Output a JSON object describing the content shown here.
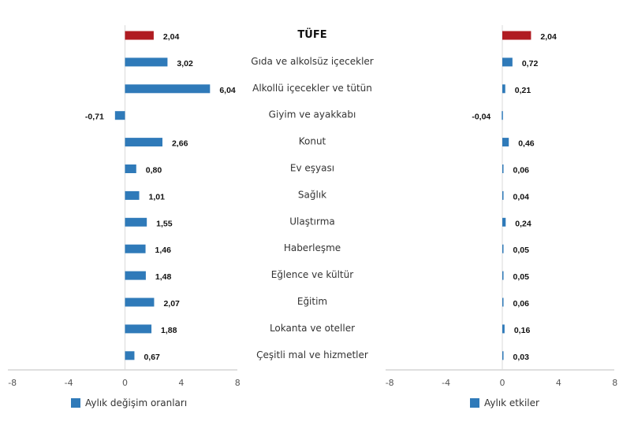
{
  "colors": {
    "tufe": "#b01c22",
    "item": "#2f7ab9",
    "axis": "#bfbfbf"
  },
  "legend": {
    "left_label": "Aylık değişim oranları",
    "right_label": "Aylık etkiler"
  },
  "chart_data": [
    {
      "type": "bar",
      "orientation": "horizontal",
      "categories": [
        "TÜFE",
        "Gıda ve alkolsüz içecekler",
        "Alkollü içecekler ve tütün",
        "Giyim ve ayakkabı",
        "Konut",
        "Ev eşyası",
        "Sağlık",
        "Ulaştırma",
        "Haberleşme",
        "Eğlence ve kültür",
        "Eğitim",
        "Lokanta ve oteller",
        "Çeşitli mal ve hizmetler"
      ],
      "series": [
        {
          "name": "Aylık değişim oranları",
          "values": [
            2.04,
            3.02,
            6.04,
            -0.71,
            2.66,
            0.8,
            1.01,
            1.55,
            1.46,
            1.48,
            2.07,
            1.88,
            0.67
          ],
          "labels": [
            "2,04",
            "3,02",
            "6,04",
            "-0,71",
            "2,66",
            "0,80",
            "1,01",
            "1,55",
            "1,46",
            "1,48",
            "2,07",
            "1,88",
            "0,67"
          ]
        }
      ],
      "xlim": [
        -8,
        8
      ],
      "xticks": [
        "-8",
        "-4",
        "0",
        "4",
        "8"
      ],
      "grid": false,
      "legend_position": "bottom"
    },
    {
      "type": "bar",
      "orientation": "horizontal",
      "categories": [
        "TÜFE",
        "Gıda ve alkolsüz içecekler",
        "Alkollü içecekler ve tütün",
        "Giyim ve ayakkabı",
        "Konut",
        "Ev eşyası",
        "Sağlık",
        "Ulaştırma",
        "Haberleşme",
        "Eğlence ve kültür",
        "Eğitim",
        "Lokanta ve oteller",
        "Çeşitli mal ve hizmetler"
      ],
      "series": [
        {
          "name": "Aylık etkiler",
          "values": [
            2.04,
            0.72,
            0.21,
            -0.04,
            0.46,
            0.06,
            0.04,
            0.24,
            0.05,
            0.05,
            0.06,
            0.16,
            0.03
          ],
          "labels": [
            "2,04",
            "0,72",
            "0,21",
            "-0,04",
            "0,46",
            "0,06",
            "0,04",
            "0,24",
            "0,05",
            "0,05",
            "0,06",
            "0,16",
            "0,03"
          ]
        }
      ],
      "xlim": [
        -8,
        8
      ],
      "xticks": [
        "-8",
        "-4",
        "0",
        "4",
        "8"
      ],
      "grid": false,
      "legend_position": "bottom"
    }
  ]
}
